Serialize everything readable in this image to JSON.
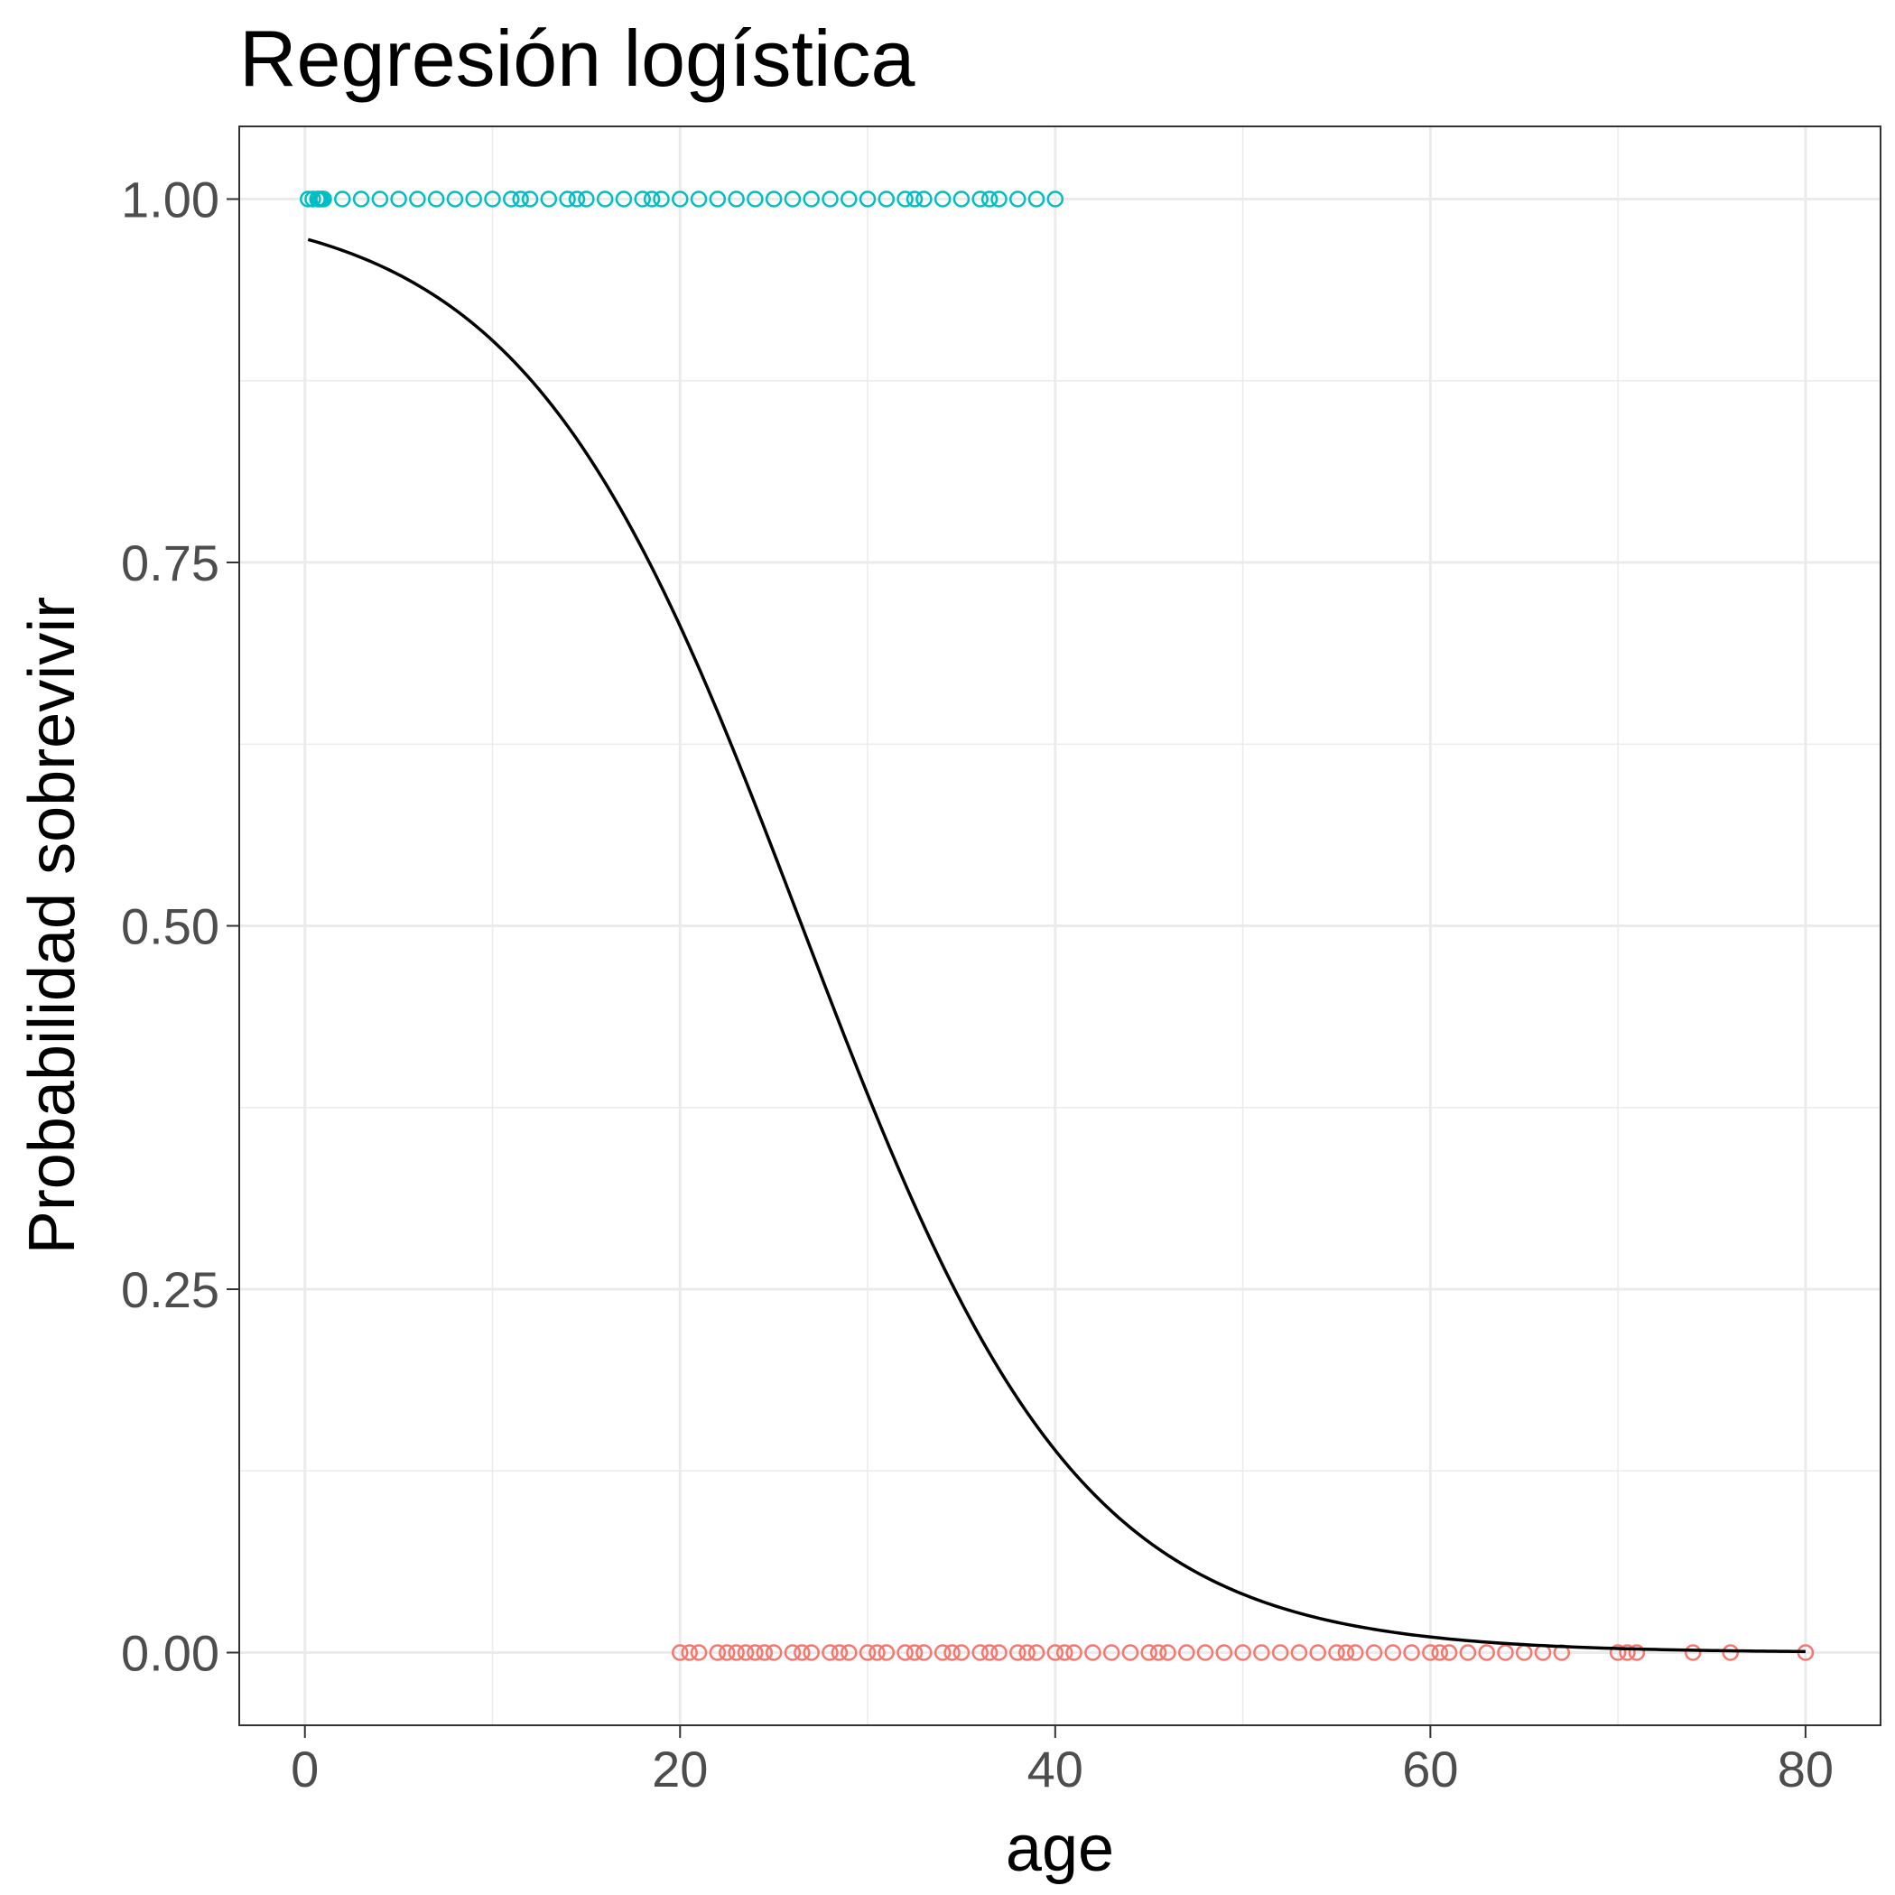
{
  "chart_data": {
    "type": "scatter",
    "title": "Regresión logística",
    "xlabel": "age",
    "ylabel": "Probabilidad sobrevivir",
    "xlim": [
      -3.5,
      84.0
    ],
    "ylim": [
      -0.05,
      1.05
    ],
    "x_ticks": [
      0,
      20,
      40,
      60,
      80
    ],
    "x_tick_labels": [
      "0",
      "20",
      "40",
      "60",
      "80"
    ],
    "y_ticks": [
      0.0,
      0.25,
      0.5,
      0.75,
      1.0
    ],
    "y_tick_labels": [
      "0.00",
      "0.25",
      "0.50",
      "0.75",
      "1.00"
    ],
    "grid": true,
    "legend": "none",
    "colors": {
      "survived": "#00BFC4",
      "not_survived": "#F8766D",
      "curve": "#000000",
      "grid": "#ebebeb",
      "panel_border": "#333333"
    },
    "series": [
      {
        "type": "scatter",
        "color": "#00BFC4",
        "y": 1,
        "x": [
          0.17,
          0.42,
          0.67,
          0.75,
          0.83,
          0.92,
          1,
          2,
          3,
          4,
          5,
          6,
          7,
          8,
          9,
          10,
          11,
          11.5,
          12,
          13,
          14,
          14.5,
          15,
          16,
          17,
          18,
          18.5,
          19,
          20,
          21,
          22,
          23,
          24,
          25,
          26,
          27,
          28,
          29,
          30,
          31,
          32,
          32.5,
          33,
          34,
          35,
          36,
          36.5,
          37,
          38,
          39,
          40
        ]
      },
      {
        "type": "scatter",
        "color": "#F8766D",
        "y": 0,
        "x": [
          20,
          20.5,
          21,
          22,
          22.5,
          23,
          23.5,
          24,
          24.5,
          25,
          26,
          26.5,
          27,
          28,
          28.5,
          29,
          30,
          30.5,
          31,
          32,
          32.5,
          33,
          34,
          34.5,
          35,
          36,
          36.5,
          37,
          38,
          38.5,
          39,
          40,
          40.5,
          41,
          42,
          43,
          44,
          45,
          45.5,
          46,
          47,
          48,
          49,
          50,
          51,
          52,
          53,
          54,
          55,
          55.5,
          56,
          57,
          58,
          59,
          60,
          60.5,
          61,
          62,
          63,
          64,
          65,
          66,
          67,
          70,
          70.5,
          71,
          74,
          76,
          80
        ]
      },
      {
        "type": "line",
        "color": "#000000",
        "model": "logistic",
        "x_range": [
          0.17,
          80
        ],
        "midpoint": 26.5,
        "slope": -0.135
      }
    ]
  }
}
